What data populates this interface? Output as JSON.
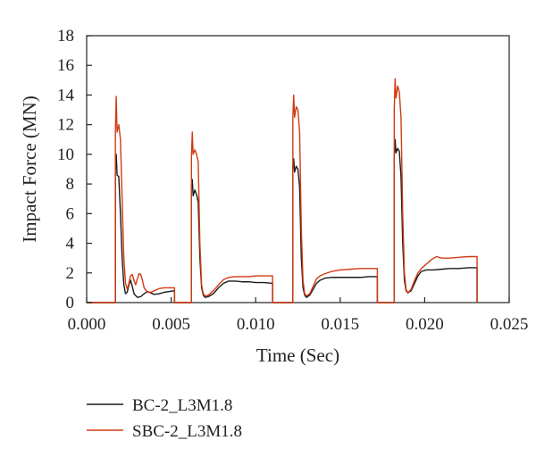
{
  "chart_data": {
    "type": "line",
    "xlabel": "Time (Sec)",
    "ylabel": "Impact Force (MN)",
    "xlim": [
      0,
      0.025
    ],
    "ylim": [
      0,
      18
    ],
    "x_ticks": [
      0.0,
      0.005,
      0.01,
      0.015,
      0.02,
      0.025
    ],
    "x_tick_labels": [
      "0.000",
      "0.005",
      "0.010",
      "0.015",
      "0.020",
      "0.025"
    ],
    "y_ticks": [
      0,
      2,
      4,
      6,
      8,
      10,
      12,
      14,
      16,
      18
    ],
    "y_tick_labels": [
      "0",
      "2",
      "4",
      "6",
      "8",
      "10",
      "12",
      "14",
      "16",
      "18"
    ],
    "grid": false,
    "legend_position": "bottom-left-outside",
    "series": [
      {
        "name": "BC-2_L3M1.8",
        "color": "#1a1a1a",
        "points": [
          [
            0.0,
            0
          ],
          [
            0.0017,
            0
          ],
          [
            0.0017,
            8.8
          ],
          [
            0.00175,
            10.0
          ],
          [
            0.0018,
            8.6
          ],
          [
            0.0019,
            8.5
          ],
          [
            0.002,
            6.0
          ],
          [
            0.0021,
            3.0
          ],
          [
            0.0022,
            1.2
          ],
          [
            0.0023,
            0.6
          ],
          [
            0.0024,
            0.7
          ],
          [
            0.0025,
            1.2
          ],
          [
            0.0026,
            1.5
          ],
          [
            0.0027,
            1.1
          ],
          [
            0.0028,
            0.6
          ],
          [
            0.003,
            0.35
          ],
          [
            0.0032,
            0.4
          ],
          [
            0.0034,
            0.6
          ],
          [
            0.0036,
            0.75
          ],
          [
            0.0038,
            0.65
          ],
          [
            0.004,
            0.55
          ],
          [
            0.0043,
            0.6
          ],
          [
            0.0046,
            0.7
          ],
          [
            0.0049,
            0.75
          ],
          [
            0.0052,
            0.8
          ],
          [
            0.0052,
            0
          ],
          [
            0.0062,
            0
          ],
          [
            0.0062,
            7.8
          ],
          [
            0.00625,
            8.3
          ],
          [
            0.0063,
            7.2
          ],
          [
            0.0064,
            7.6
          ],
          [
            0.0065,
            7.3
          ],
          [
            0.0066,
            6.8
          ],
          [
            0.0067,
            3.0
          ],
          [
            0.0068,
            1.0
          ],
          [
            0.0069,
            0.5
          ],
          [
            0.007,
            0.35
          ],
          [
            0.0072,
            0.4
          ],
          [
            0.0075,
            0.6
          ],
          [
            0.0078,
            1.0
          ],
          [
            0.0081,
            1.3
          ],
          [
            0.0084,
            1.45
          ],
          [
            0.0088,
            1.45
          ],
          [
            0.0092,
            1.4
          ],
          [
            0.0096,
            1.4
          ],
          [
            0.01,
            1.35
          ],
          [
            0.0105,
            1.35
          ],
          [
            0.011,
            1.3
          ],
          [
            0.011,
            0
          ],
          [
            0.0122,
            0
          ],
          [
            0.0122,
            9.1
          ],
          [
            0.00625,
            0
          ],
          [
            0.0122,
            9.1
          ],
          [
            0.01225,
            9.7
          ],
          [
            0.0123,
            8.8
          ],
          [
            0.0124,
            9.2
          ],
          [
            0.0125,
            9.0
          ],
          [
            0.0126,
            7.8
          ],
          [
            0.0127,
            3.0
          ],
          [
            0.0128,
            1.0
          ],
          [
            0.0129,
            0.5
          ],
          [
            0.013,
            0.35
          ],
          [
            0.0132,
            0.5
          ],
          [
            0.0134,
            0.9
          ],
          [
            0.0136,
            1.3
          ],
          [
            0.0138,
            1.5
          ],
          [
            0.0141,
            1.65
          ],
          [
            0.0145,
            1.7
          ],
          [
            0.015,
            1.7
          ],
          [
            0.0156,
            1.7
          ],
          [
            0.0162,
            1.7
          ],
          [
            0.0167,
            1.75
          ],
          [
            0.0172,
            1.75
          ],
          [
            0.0172,
            0
          ],
          [
            0.0182,
            0
          ],
          [
            0.0182,
            9.9
          ],
          [
            0.01825,
            11.0
          ],
          [
            0.0183,
            10.1
          ],
          [
            0.0184,
            10.4
          ],
          [
            0.0185,
            10.2
          ],
          [
            0.0186,
            8.5
          ],
          [
            0.0187,
            4.0
          ],
          [
            0.0188,
            1.5
          ],
          [
            0.0189,
            0.8
          ],
          [
            0.019,
            0.65
          ],
          [
            0.0192,
            0.8
          ],
          [
            0.0194,
            1.3
          ],
          [
            0.0196,
            1.8
          ],
          [
            0.0198,
            2.1
          ],
          [
            0.0201,
            2.2
          ],
          [
            0.0205,
            2.2
          ],
          [
            0.021,
            2.25
          ],
          [
            0.0215,
            2.3
          ],
          [
            0.022,
            2.3
          ],
          [
            0.0226,
            2.35
          ],
          [
            0.0231,
            2.35
          ],
          [
            0.0231,
            0
          ]
        ]
      },
      {
        "name": "SBC-2_L3M1.8",
        "color": "#d23a12",
        "points": [
          [
            0.0,
            0
          ],
          [
            0.0017,
            0
          ],
          [
            0.0017,
            11.5
          ],
          [
            0.00175,
            13.9
          ],
          [
            0.0018,
            11.5
          ],
          [
            0.0019,
            12.0
          ],
          [
            0.002,
            11.0
          ],
          [
            0.0021,
            7.0
          ],
          [
            0.0022,
            3.0
          ],
          [
            0.0023,
            1.3
          ],
          [
            0.0024,
            0.9
          ],
          [
            0.0025,
            1.3
          ],
          [
            0.0026,
            1.8
          ],
          [
            0.0027,
            1.9
          ],
          [
            0.0028,
            1.5
          ],
          [
            0.0029,
            1.2
          ],
          [
            0.003,
            1.6
          ],
          [
            0.0031,
            1.95
          ],
          [
            0.0032,
            1.9
          ],
          [
            0.0033,
            1.5
          ],
          [
            0.0034,
            1.0
          ],
          [
            0.0036,
            0.7
          ],
          [
            0.0038,
            0.7
          ],
          [
            0.004,
            0.8
          ],
          [
            0.0043,
            0.95
          ],
          [
            0.0046,
            1.0
          ],
          [
            0.0049,
            1.0
          ],
          [
            0.0052,
            1.0
          ],
          [
            0.0052,
            0
          ],
          [
            0.0062,
            0
          ],
          [
            0.0062,
            9.8
          ],
          [
            0.00625,
            11.5
          ],
          [
            0.0063,
            10.0
          ],
          [
            0.0064,
            10.3
          ],
          [
            0.0065,
            10.0
          ],
          [
            0.0066,
            9.5
          ],
          [
            0.0067,
            4.0
          ],
          [
            0.0068,
            1.2
          ],
          [
            0.0069,
            0.6
          ],
          [
            0.007,
            0.45
          ],
          [
            0.0072,
            0.5
          ],
          [
            0.0075,
            0.8
          ],
          [
            0.0078,
            1.2
          ],
          [
            0.0081,
            1.55
          ],
          [
            0.0084,
            1.7
          ],
          [
            0.0088,
            1.75
          ],
          [
            0.0092,
            1.75
          ],
          [
            0.0096,
            1.75
          ],
          [
            0.01,
            1.8
          ],
          [
            0.0105,
            1.8
          ],
          [
            0.011,
            1.8
          ],
          [
            0.011,
            0
          ],
          [
            0.0122,
            0
          ],
          [
            0.0122,
            12.5
          ],
          [
            0.01225,
            14.0
          ],
          [
            0.0123,
            12.5
          ],
          [
            0.0124,
            13.2
          ],
          [
            0.0125,
            13.0
          ],
          [
            0.0126,
            11.5
          ],
          [
            0.0127,
            5.0
          ],
          [
            0.0128,
            1.5
          ],
          [
            0.0129,
            0.6
          ],
          [
            0.013,
            0.45
          ],
          [
            0.0132,
            0.6
          ],
          [
            0.0134,
            1.1
          ],
          [
            0.0136,
            1.6
          ],
          [
            0.0138,
            1.8
          ],
          [
            0.0141,
            1.95
          ],
          [
            0.0145,
            2.1
          ],
          [
            0.015,
            2.2
          ],
          [
            0.0156,
            2.25
          ],
          [
            0.0162,
            2.3
          ],
          [
            0.0167,
            2.3
          ],
          [
            0.0172,
            2.3
          ],
          [
            0.0172,
            0
          ],
          [
            0.0182,
            0
          ],
          [
            0.0182,
            13.0
          ],
          [
            0.01825,
            15.1
          ],
          [
            0.0183,
            13.8
          ],
          [
            0.0184,
            14.6
          ],
          [
            0.0185,
            14.2
          ],
          [
            0.0186,
            12.5
          ],
          [
            0.0187,
            6.0
          ],
          [
            0.0188,
            2.0
          ],
          [
            0.0189,
            0.9
          ],
          [
            0.019,
            0.65
          ],
          [
            0.0192,
            0.9
          ],
          [
            0.0194,
            1.5
          ],
          [
            0.0196,
            2.0
          ],
          [
            0.0198,
            2.3
          ],
          [
            0.0201,
            2.6
          ],
          [
            0.0204,
            2.9
          ],
          [
            0.0207,
            3.1
          ],
          [
            0.021,
            3.0
          ],
          [
            0.0215,
            3.0
          ],
          [
            0.022,
            3.05
          ],
          [
            0.0226,
            3.1
          ],
          [
            0.0231,
            3.1
          ],
          [
            0.0231,
            0
          ]
        ]
      }
    ]
  }
}
